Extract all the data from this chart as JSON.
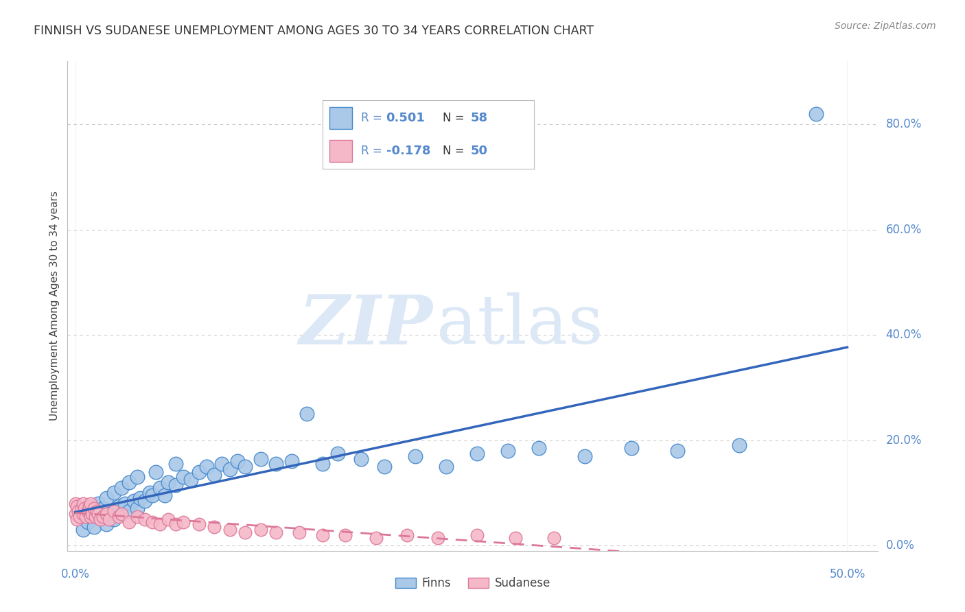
{
  "title": "FINNISH VS SUDANESE UNEMPLOYMENT AMONG AGES 30 TO 34 YEARS CORRELATION CHART",
  "source": "Source: ZipAtlas.com",
  "ylabel": "Unemployment Among Ages 30 to 34 years",
  "ytick_labels": [
    "0.0%",
    "20.0%",
    "40.0%",
    "60.0%",
    "80.0%"
  ],
  "ytick_values": [
    0.0,
    0.2,
    0.4,
    0.6,
    0.8
  ],
  "xtick_labels": [
    "0.0%",
    "50.0%"
  ],
  "xtick_values": [
    0.0,
    0.5
  ],
  "xlim": [
    -0.005,
    0.52
  ],
  "ylim": [
    -0.01,
    0.92
  ],
  "finns_color": "#aac8e8",
  "finns_edge_color": "#4488cc",
  "finns_line_color": "#3366bb",
  "sudanese_color": "#f5b8c8",
  "sudanese_edge_color": "#dd7799",
  "sudanese_line_color": "#dd7799",
  "watermark_zip_color": "#dce8f5",
  "watermark_atlas_color": "#dce8f5",
  "background_color": "#ffffff",
  "grid_color": "#cccccc",
  "title_color": "#333333",
  "axis_label_color": "#5588cc",
  "right_tick_color": "#5588cc",
  "legend_text_color": "#333333",
  "legend_value_color": "#5588cc",
  "finns_x": [
    0.005,
    0.008,
    0.01,
    0.012,
    0.015,
    0.015,
    0.018,
    0.02,
    0.02,
    0.022,
    0.025,
    0.025,
    0.028,
    0.03,
    0.03,
    0.032,
    0.035,
    0.035,
    0.038,
    0.04,
    0.04,
    0.042,
    0.045,
    0.048,
    0.05,
    0.052,
    0.055,
    0.058,
    0.06,
    0.065,
    0.065,
    0.07,
    0.075,
    0.08,
    0.085,
    0.09,
    0.095,
    0.1,
    0.105,
    0.11,
    0.12,
    0.13,
    0.14,
    0.15,
    0.16,
    0.17,
    0.185,
    0.2,
    0.22,
    0.24,
    0.26,
    0.28,
    0.3,
    0.33,
    0.36,
    0.39,
    0.43,
    0.48
  ],
  "finns_y": [
    0.03,
    0.045,
    0.06,
    0.035,
    0.055,
    0.08,
    0.07,
    0.04,
    0.09,
    0.06,
    0.05,
    0.1,
    0.075,
    0.06,
    0.11,
    0.08,
    0.065,
    0.12,
    0.085,
    0.07,
    0.13,
    0.09,
    0.085,
    0.1,
    0.095,
    0.14,
    0.11,
    0.095,
    0.12,
    0.115,
    0.155,
    0.13,
    0.125,
    0.14,
    0.15,
    0.135,
    0.155,
    0.145,
    0.16,
    0.15,
    0.165,
    0.155,
    0.16,
    0.25,
    0.155,
    0.175,
    0.165,
    0.15,
    0.17,
    0.15,
    0.175,
    0.18,
    0.185,
    0.17,
    0.185,
    0.18,
    0.19,
    0.82
  ],
  "sudanese_x": [
    0.0,
    0.0,
    0.001,
    0.001,
    0.002,
    0.003,
    0.004,
    0.005,
    0.005,
    0.006,
    0.007,
    0.008,
    0.009,
    0.01,
    0.01,
    0.011,
    0.012,
    0.013,
    0.014,
    0.015,
    0.016,
    0.018,
    0.02,
    0.022,
    0.025,
    0.028,
    0.03,
    0.035,
    0.04,
    0.045,
    0.05,
    0.055,
    0.06,
    0.065,
    0.07,
    0.08,
    0.09,
    0.1,
    0.11,
    0.12,
    0.13,
    0.145,
    0.16,
    0.175,
    0.195,
    0.215,
    0.235,
    0.26,
    0.285,
    0.31
  ],
  "sudanese_y": [
    0.06,
    0.08,
    0.05,
    0.075,
    0.065,
    0.055,
    0.07,
    0.08,
    0.06,
    0.07,
    0.055,
    0.065,
    0.075,
    0.055,
    0.08,
    0.06,
    0.07,
    0.055,
    0.065,
    0.06,
    0.05,
    0.055,
    0.06,
    0.05,
    0.065,
    0.055,
    0.06,
    0.045,
    0.055,
    0.05,
    0.045,
    0.04,
    0.05,
    0.04,
    0.045,
    0.04,
    0.035,
    0.03,
    0.025,
    0.03,
    0.025,
    0.025,
    0.02,
    0.02,
    0.015,
    0.02,
    0.015,
    0.02,
    0.015,
    0.015
  ]
}
